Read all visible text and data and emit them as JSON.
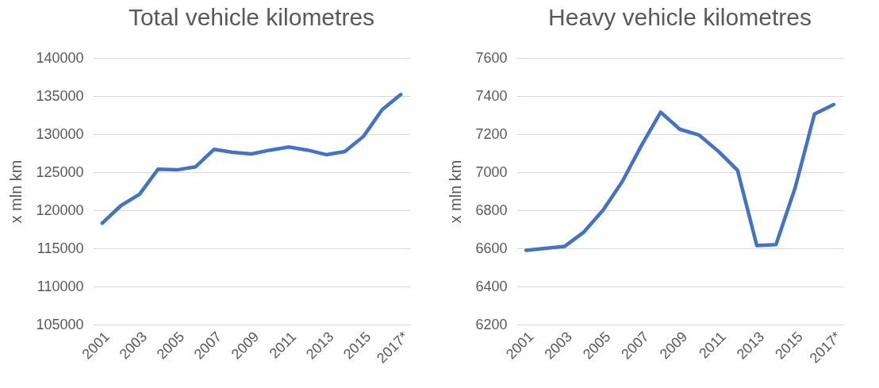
{
  "chart_data": [
    {
      "type": "line",
      "title": "Total vehicle kilometres",
      "ylabel": "x mln km",
      "categories": [
        "2001",
        null,
        "2003",
        null,
        "2005",
        null,
        "2007",
        null,
        "2009",
        null,
        "2011",
        null,
        "2013",
        null,
        "2015",
        null,
        "2017*"
      ],
      "series": [
        {
          "color": "#4472c4",
          "values": [
            118300,
            120600,
            122100,
            125400,
            125300,
            125700,
            128000,
            127600,
            127400,
            127900,
            128300,
            127900,
            127300,
            127700,
            129700,
            133200,
            135200
          ]
        }
      ],
      "ylim": [
        105000,
        140000
      ],
      "yticks": [
        105000,
        110000,
        115000,
        120000,
        125000,
        130000,
        135000,
        140000
      ],
      "grid": "y",
      "line_style": "solid"
    },
    {
      "type": "line",
      "title": "Heavy vehicle kilometres",
      "ylabel": "x mln km",
      "categories": [
        "2001",
        null,
        "2003",
        null,
        "2005",
        null,
        "2007",
        null,
        "2009",
        null,
        "2011",
        null,
        "2013",
        null,
        "2015",
        null,
        "2017*"
      ],
      "series": [
        {
          "color": "#4472c4",
          "values": [
            6590,
            6600,
            6610,
            6685,
            6800,
            6950,
            7140,
            7315,
            7225,
            7195,
            7110,
            7010,
            6615,
            6620,
            6920,
            7305,
            7355
          ]
        }
      ],
      "ylim": [
        6200,
        7600
      ],
      "yticks": [
        6200,
        6400,
        6600,
        6800,
        7000,
        7200,
        7400,
        7600
      ],
      "grid": "y",
      "line_style": "solid"
    }
  ]
}
